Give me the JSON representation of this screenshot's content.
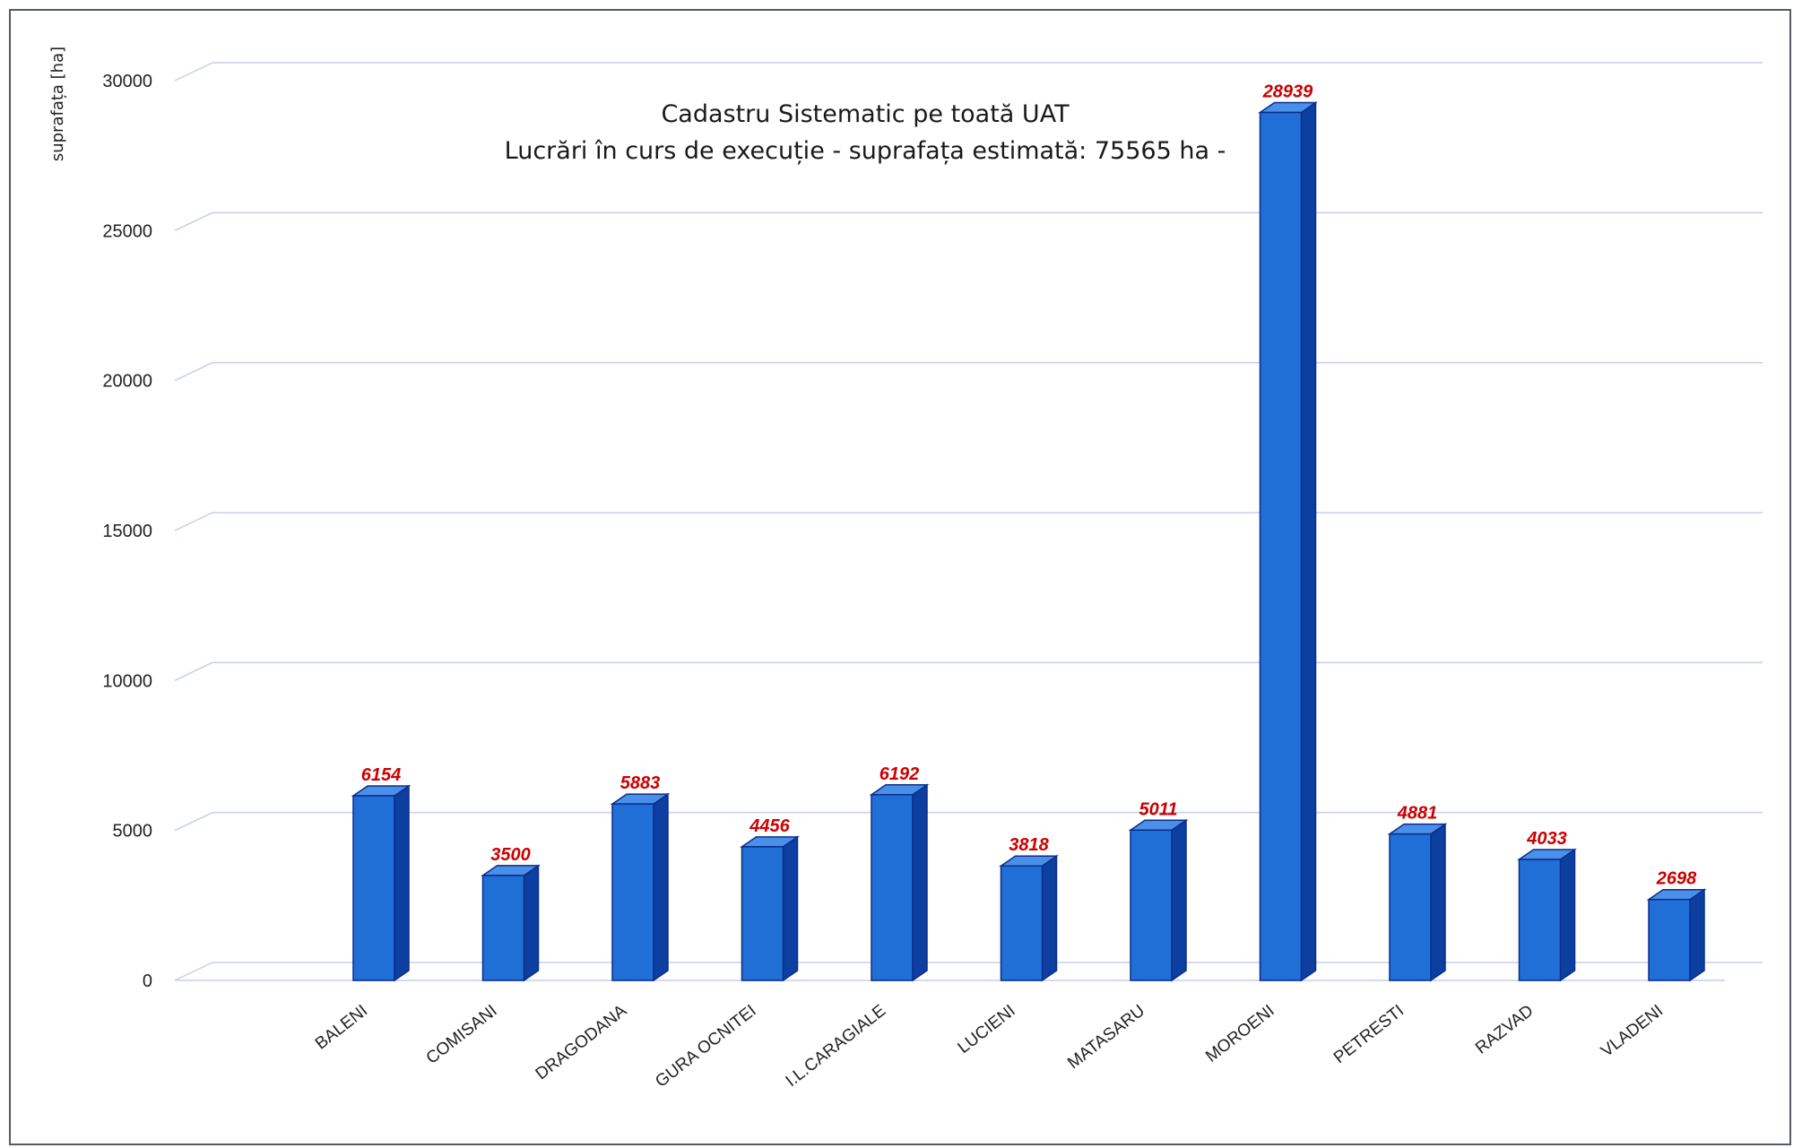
{
  "chart_data": {
    "type": "bar",
    "title_lines": [
      "Cadastru Sistematic pe toată UAT",
      "Lucrări în curs de execuție - suprafața estimată: 75565 ha -"
    ],
    "ylabel": "suprafața  [ha]",
    "xlabel": "",
    "categories": [
      "BALENI",
      "COMISANI",
      "DRAGODANA",
      "GURA OCNITEI",
      "I.L.CARAGIALE",
      "LUCIENI",
      "MATASARU",
      "MOROENI",
      "PETRESTI",
      "RAZVAD",
      "VLADENI"
    ],
    "values": [
      6154,
      3500,
      5883,
      4456,
      6192,
      3818,
      5011,
      28939,
      4881,
      4033,
      2698
    ],
    "value_labels": [
      "6154",
      "3500",
      "5883",
      "4456",
      "6192",
      "3818",
      "5011",
      "28939",
      "4881",
      "4033",
      "2698"
    ],
    "yticks": [
      0,
      5000,
      10000,
      15000,
      20000,
      25000,
      30000
    ],
    "ytick_labels": [
      "0",
      "5000",
      "10000",
      "15000",
      "20000",
      "25000",
      "30000"
    ],
    "ylim": [
      0,
      30000
    ],
    "grid": true,
    "legend": "none",
    "style": "3d-column",
    "colors": {
      "bar_front": "#1f6fd6",
      "bar_side": "#0d3fa0",
      "bar_top": "#4a8fe8",
      "bar_edge": "#0a2d8c",
      "grid": "#c8cde8",
      "value_label": "#cc0000"
    }
  }
}
